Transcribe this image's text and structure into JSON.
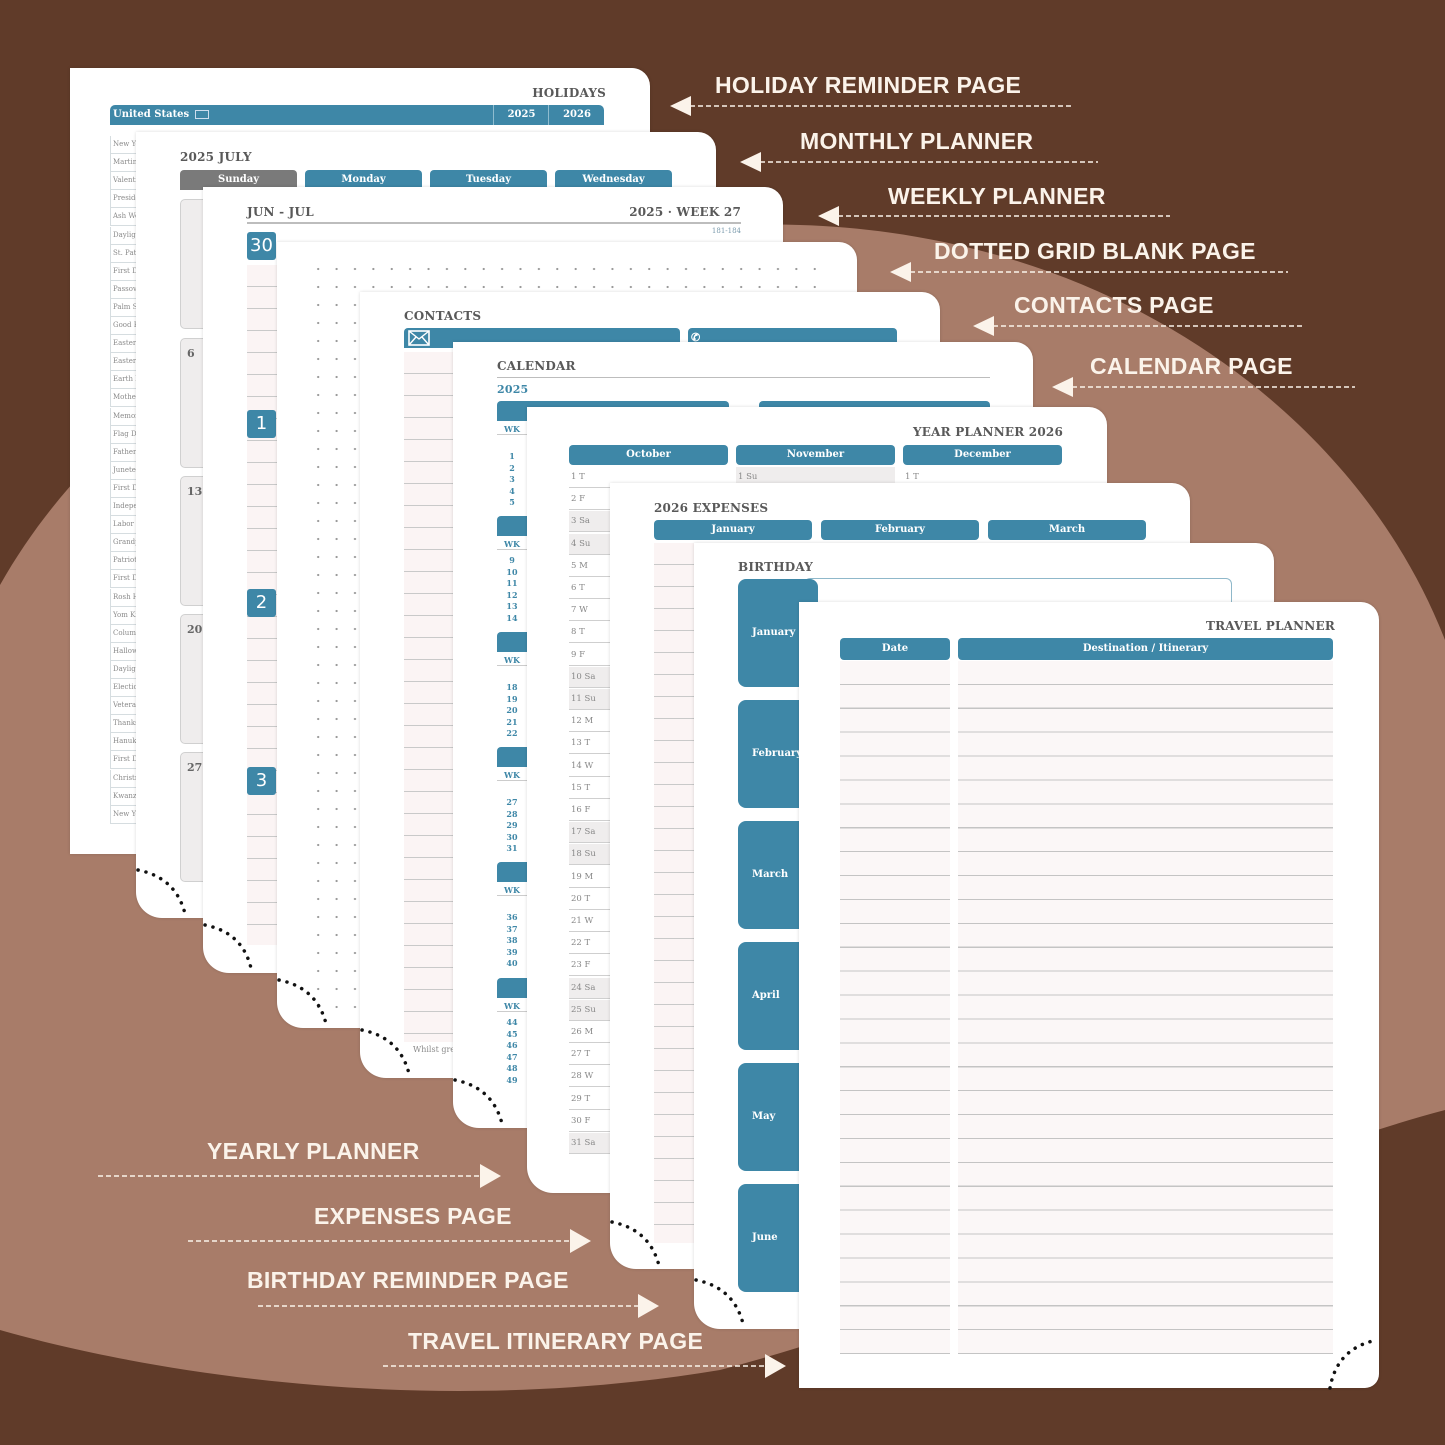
{
  "colors": {
    "background_dark": "#603b29",
    "background_light": "#a87c69",
    "accent_teal": "#3e87a7",
    "label_text": "#fbf3ea"
  },
  "labels_right": [
    "HOLIDAY REMINDER PAGE",
    "MONTHLY PLANNER",
    "WEEKLY PLANNER",
    "DOTTED GRID BLANK PAGE",
    "CONTACTS PAGE",
    "CALENDAR PAGE"
  ],
  "labels_left": [
    "YEARLY PLANNER",
    "EXPENSES PAGE",
    "BIRTHDAY REMINDER PAGE",
    "TRAVEL ITINERARY PAGE"
  ],
  "holidays": {
    "title": "HOLIDAYS",
    "country": "United States",
    "flag_icon": "us-flag-icon",
    "year1": "2025",
    "year2": "2026",
    "items": [
      "New Year'",
      "Martin",
      "Valenti",
      "Preside",
      "Ash We",
      "Dayligh",
      "St. Patr",
      "First Da",
      "Passove",
      "Palm Su",
      "Good F",
      "Easter S",
      "Easter I",
      "Earth D",
      "Mother",
      "Memor",
      "Flag Da",
      "Father's",
      "Junete",
      "First Da",
      "Indepe",
      "Labor I",
      "Grandp",
      "Patriot",
      "First Da",
      "Rosh H",
      "Yom Ki",
      "Columb",
      "Hallow",
      "Dayligh",
      "Electio",
      "Veteran",
      "Thanks",
      "Hanukk",
      "First Da",
      "Christm",
      "Kwanza",
      "New Ye"
    ]
  },
  "monthly": {
    "title": "2025 JULY",
    "days": [
      "Sunday",
      "Monday",
      "Tuesday",
      "Wednesday"
    ],
    "week_starts": [
      "",
      "6",
      "13",
      "20",
      "27"
    ]
  },
  "weekly": {
    "range": "JUN - JUL",
    "week": "2025 · WEEK 27",
    "day_of_year": "181-184",
    "days": [
      "30",
      "1",
      "2",
      "3"
    ]
  },
  "contacts": {
    "title": "CONTACTS",
    "email_icon": "envelope-icon",
    "phone_icon": "phone-icon",
    "footer": "Whilst grea"
  },
  "calendar": {
    "title": "CALENDAR",
    "year": "2025",
    "wk_label": "WK",
    "blocks": [
      [
        "1",
        "2",
        "3",
        "4",
        "5"
      ],
      [
        "9",
        "10",
        "11",
        "12",
        "13",
        "14"
      ],
      [
        "18",
        "19",
        "20",
        "21",
        "22"
      ],
      [
        "27",
        "28",
        "29",
        "30",
        "31"
      ],
      [
        "36",
        "37",
        "38",
        "39",
        "40"
      ],
      [
        "44",
        "45",
        "46",
        "47",
        "48",
        "49"
      ]
    ]
  },
  "year_planner": {
    "title": "YEAR PLANNER 2026",
    "months": [
      "October",
      "November",
      "December"
    ],
    "october_days": [
      "1 T",
      "2 F",
      "3 Sa",
      "4 Su",
      "5 M",
      "6 T",
      "7 W",
      "8 T",
      "9 F",
      "10 Sa",
      "11 Su",
      "12 M",
      "13 T",
      "14 W",
      "15 T",
      "16 F",
      "17 Sa",
      "18 Su",
      "19 M",
      "20 T",
      "21 W",
      "22 T",
      "23 F",
      "24 Sa",
      "25 Su",
      "26 M",
      "27 T",
      "28 W",
      "29 T",
      "30 F",
      "31 Sa"
    ],
    "november_first": "1 Su",
    "december_first": "1 T"
  },
  "expenses": {
    "title": "2026 EXPENSES",
    "months": [
      "January",
      "February",
      "March"
    ]
  },
  "birthday": {
    "title": "BIRTHDAY",
    "months": [
      "January",
      "February",
      "March",
      "April",
      "May",
      "June"
    ]
  },
  "travel": {
    "title": "TRAVEL PLANNER",
    "columns": [
      "Date",
      "Destination / Itinerary"
    ]
  }
}
